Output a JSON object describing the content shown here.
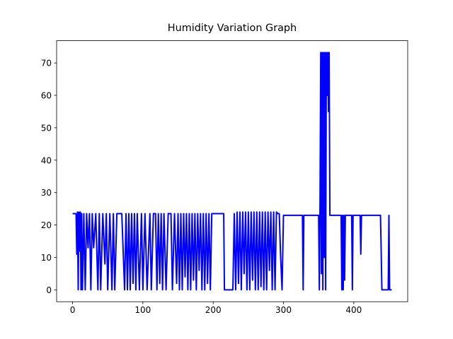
{
  "chart_data": {
    "type": "line",
    "title": "Humidity Variation Graph",
    "x": [
      0,
      5,
      6,
      7,
      8,
      9,
      10,
      11,
      12,
      13,
      14,
      16,
      18,
      20,
      22,
      24,
      26,
      28,
      30,
      33,
      36,
      38,
      40,
      43,
      46,
      48,
      50,
      53,
      56,
      58,
      60,
      63,
      66,
      70,
      74,
      76,
      78,
      80,
      82,
      84,
      86,
      88,
      90,
      92,
      95,
      98,
      100,
      103,
      106,
      110,
      112,
      115,
      118,
      120,
      122,
      124,
      126,
      128,
      130,
      133,
      136,
      140,
      142,
      145,
      148,
      150,
      152,
      154,
      156,
      158,
      160,
      162,
      164,
      166,
      168,
      170,
      172,
      174,
      176,
      178,
      180,
      182,
      184,
      186,
      188,
      190,
      192,
      194,
      196,
      198,
      200,
      202,
      205,
      210,
      215,
      216,
      228,
      230,
      232,
      234,
      236,
      238,
      240,
      242,
      244,
      246,
      248,
      250,
      252,
      254,
      256,
      258,
      260,
      262,
      264,
      266,
      268,
      270,
      272,
      274,
      276,
      278,
      280,
      282,
      284,
      286,
      288,
      290,
      292,
      294,
      296,
      298,
      300,
      327,
      328,
      329,
      350,
      351,
      352,
      353,
      354,
      355,
      356,
      357,
      358,
      359,
      360,
      361,
      362,
      363,
      364,
      365,
      366,
      382,
      383,
      384,
      385,
      386,
      387,
      388,
      397,
      398,
      399,
      409,
      410,
      411,
      438,
      439,
      440,
      449,
      450,
      451,
      452,
      454
    ],
    "series": [
      {
        "color": "#0000ff",
        "values": [
          23.5,
          23.5,
          11,
          24,
          0,
          24,
          12,
          24,
          0,
          23.5,
          0,
          23.5,
          0,
          23.5,
          13,
          23.5,
          0,
          23.5,
          13,
          23.5,
          0,
          23.5,
          0,
          23.5,
          8,
          23.5,
          0,
          23.5,
          0,
          23.5,
          0,
          23.5,
          23.5,
          23.5,
          0,
          23.5,
          0,
          23.5,
          0,
          23.5,
          2,
          23.5,
          0,
          23.5,
          0,
          23.5,
          0,
          23.5,
          0,
          23.5,
          0,
          23.5,
          23.5,
          0,
          23.5,
          2,
          23.5,
          0,
          23.5,
          0,
          23.5,
          23.5,
          0,
          23.5,
          2,
          23.5,
          0,
          23.5,
          0,
          23.5,
          4,
          23.5,
          0,
          23.5,
          0,
          23.5,
          3,
          23.5,
          0,
          23.5,
          6,
          23.5,
          0,
          23.5,
          0,
          23.5,
          2,
          23.5,
          0,
          23.5,
          23.5,
          23.5,
          23.5,
          23.5,
          23.5,
          0,
          0,
          23.5,
          0,
          24,
          2,
          24,
          0,
          24,
          5,
          24,
          0,
          24,
          0,
          24,
          3,
          24,
          0,
          24,
          0,
          24,
          1,
          24,
          0,
          24,
          0,
          24,
          6,
          24,
          0,
          24,
          0,
          24,
          23.5,
          23.5,
          10,
          0,
          23,
          23,
          0,
          23,
          23,
          0,
          27,
          73.2,
          5,
          73.2,
          0,
          73.2,
          10,
          73.2,
          0,
          73.2,
          60,
          73.2,
          55,
          73.2,
          23,
          23,
          0,
          23,
          0,
          23,
          3,
          23,
          23,
          0,
          23,
          23,
          11,
          23,
          23,
          12,
          0,
          0,
          23,
          0,
          0,
          0
        ]
      }
    ],
    "xlim": [
      -22.7,
      476.7
    ],
    "ylim": [
      -3.66,
      76.86
    ],
    "xticks": [
      0,
      100,
      200,
      300,
      400
    ],
    "yticks": [
      0,
      10,
      20,
      30,
      40,
      50,
      60,
      70
    ]
  }
}
